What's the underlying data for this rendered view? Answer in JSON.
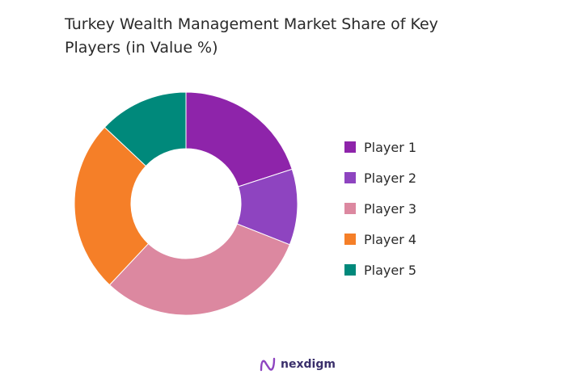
{
  "title_line1": "Turkey Wealth Management Market Share of Key",
  "title_line2": "Players (in Value %)",
  "brand": {
    "name": "nexdigm",
    "icon": "nexdigm-logo-icon",
    "color": "#3a2f6b"
  },
  "chart_data": {
    "type": "pie",
    "donut": true,
    "title": "Turkey Wealth Management Market Share of Key Players (in Value %)",
    "legend_position": "right",
    "categories": [
      "Player 1",
      "Player 2",
      "Player 3",
      "Player 4",
      "Player 5"
    ],
    "values": [
      20,
      11,
      31,
      25,
      13
    ],
    "colors": [
      "#8E24AA",
      "#8E44C0",
      "#DC88A0",
      "#F57F28",
      "#00897B"
    ]
  }
}
